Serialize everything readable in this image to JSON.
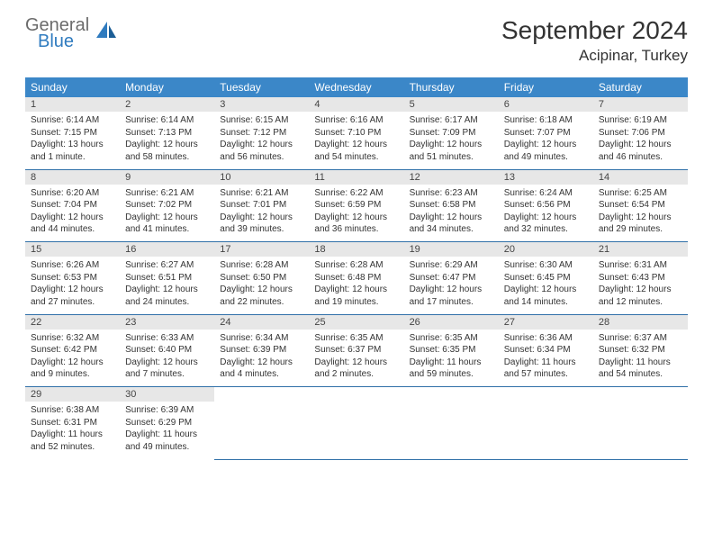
{
  "logo": {
    "general": "General",
    "blue": "Blue"
  },
  "title": "September 2024",
  "location": "Acipinar, Turkey",
  "colors": {
    "header_bg": "#3b87c8",
    "header_text": "#ffffff",
    "daynum_bg": "#e7e7e7",
    "row_border": "#2f6fa8",
    "logo_gray": "#6b6b6b",
    "logo_blue": "#2f7bbf"
  },
  "weekdays": [
    "Sunday",
    "Monday",
    "Tuesday",
    "Wednesday",
    "Thursday",
    "Friday",
    "Saturday"
  ],
  "weeks": [
    {
      "nums": [
        "1",
        "2",
        "3",
        "4",
        "5",
        "6",
        "7"
      ],
      "cells": [
        {
          "sunrise": "Sunrise: 6:14 AM",
          "sunset": "Sunset: 7:15 PM",
          "daylight": "Daylight: 13 hours and 1 minute."
        },
        {
          "sunrise": "Sunrise: 6:14 AM",
          "sunset": "Sunset: 7:13 PM",
          "daylight": "Daylight: 12 hours and 58 minutes."
        },
        {
          "sunrise": "Sunrise: 6:15 AM",
          "sunset": "Sunset: 7:12 PM",
          "daylight": "Daylight: 12 hours and 56 minutes."
        },
        {
          "sunrise": "Sunrise: 6:16 AM",
          "sunset": "Sunset: 7:10 PM",
          "daylight": "Daylight: 12 hours and 54 minutes."
        },
        {
          "sunrise": "Sunrise: 6:17 AM",
          "sunset": "Sunset: 7:09 PM",
          "daylight": "Daylight: 12 hours and 51 minutes."
        },
        {
          "sunrise": "Sunrise: 6:18 AM",
          "sunset": "Sunset: 7:07 PM",
          "daylight": "Daylight: 12 hours and 49 minutes."
        },
        {
          "sunrise": "Sunrise: 6:19 AM",
          "sunset": "Sunset: 7:06 PM",
          "daylight": "Daylight: 12 hours and 46 minutes."
        }
      ]
    },
    {
      "nums": [
        "8",
        "9",
        "10",
        "11",
        "12",
        "13",
        "14"
      ],
      "cells": [
        {
          "sunrise": "Sunrise: 6:20 AM",
          "sunset": "Sunset: 7:04 PM",
          "daylight": "Daylight: 12 hours and 44 minutes."
        },
        {
          "sunrise": "Sunrise: 6:21 AM",
          "sunset": "Sunset: 7:02 PM",
          "daylight": "Daylight: 12 hours and 41 minutes."
        },
        {
          "sunrise": "Sunrise: 6:21 AM",
          "sunset": "Sunset: 7:01 PM",
          "daylight": "Daylight: 12 hours and 39 minutes."
        },
        {
          "sunrise": "Sunrise: 6:22 AM",
          "sunset": "Sunset: 6:59 PM",
          "daylight": "Daylight: 12 hours and 36 minutes."
        },
        {
          "sunrise": "Sunrise: 6:23 AM",
          "sunset": "Sunset: 6:58 PM",
          "daylight": "Daylight: 12 hours and 34 minutes."
        },
        {
          "sunrise": "Sunrise: 6:24 AM",
          "sunset": "Sunset: 6:56 PM",
          "daylight": "Daylight: 12 hours and 32 minutes."
        },
        {
          "sunrise": "Sunrise: 6:25 AM",
          "sunset": "Sunset: 6:54 PM",
          "daylight": "Daylight: 12 hours and 29 minutes."
        }
      ]
    },
    {
      "nums": [
        "15",
        "16",
        "17",
        "18",
        "19",
        "20",
        "21"
      ],
      "cells": [
        {
          "sunrise": "Sunrise: 6:26 AM",
          "sunset": "Sunset: 6:53 PM",
          "daylight": "Daylight: 12 hours and 27 minutes."
        },
        {
          "sunrise": "Sunrise: 6:27 AM",
          "sunset": "Sunset: 6:51 PM",
          "daylight": "Daylight: 12 hours and 24 minutes."
        },
        {
          "sunrise": "Sunrise: 6:28 AM",
          "sunset": "Sunset: 6:50 PM",
          "daylight": "Daylight: 12 hours and 22 minutes."
        },
        {
          "sunrise": "Sunrise: 6:28 AM",
          "sunset": "Sunset: 6:48 PM",
          "daylight": "Daylight: 12 hours and 19 minutes."
        },
        {
          "sunrise": "Sunrise: 6:29 AM",
          "sunset": "Sunset: 6:47 PM",
          "daylight": "Daylight: 12 hours and 17 minutes."
        },
        {
          "sunrise": "Sunrise: 6:30 AM",
          "sunset": "Sunset: 6:45 PM",
          "daylight": "Daylight: 12 hours and 14 minutes."
        },
        {
          "sunrise": "Sunrise: 6:31 AM",
          "sunset": "Sunset: 6:43 PM",
          "daylight": "Daylight: 12 hours and 12 minutes."
        }
      ]
    },
    {
      "nums": [
        "22",
        "23",
        "24",
        "25",
        "26",
        "27",
        "28"
      ],
      "cells": [
        {
          "sunrise": "Sunrise: 6:32 AM",
          "sunset": "Sunset: 6:42 PM",
          "daylight": "Daylight: 12 hours and 9 minutes."
        },
        {
          "sunrise": "Sunrise: 6:33 AM",
          "sunset": "Sunset: 6:40 PM",
          "daylight": "Daylight: 12 hours and 7 minutes."
        },
        {
          "sunrise": "Sunrise: 6:34 AM",
          "sunset": "Sunset: 6:39 PM",
          "daylight": "Daylight: 12 hours and 4 minutes."
        },
        {
          "sunrise": "Sunrise: 6:35 AM",
          "sunset": "Sunset: 6:37 PM",
          "daylight": "Daylight: 12 hours and 2 minutes."
        },
        {
          "sunrise": "Sunrise: 6:35 AM",
          "sunset": "Sunset: 6:35 PM",
          "daylight": "Daylight: 11 hours and 59 minutes."
        },
        {
          "sunrise": "Sunrise: 6:36 AM",
          "sunset": "Sunset: 6:34 PM",
          "daylight": "Daylight: 11 hours and 57 minutes."
        },
        {
          "sunrise": "Sunrise: 6:37 AM",
          "sunset": "Sunset: 6:32 PM",
          "daylight": "Daylight: 11 hours and 54 minutes."
        }
      ]
    },
    {
      "nums": [
        "29",
        "30",
        "",
        "",
        "",
        "",
        ""
      ],
      "cells": [
        {
          "sunrise": "Sunrise: 6:38 AM",
          "sunset": "Sunset: 6:31 PM",
          "daylight": "Daylight: 11 hours and 52 minutes."
        },
        {
          "sunrise": "Sunrise: 6:39 AM",
          "sunset": "Sunset: 6:29 PM",
          "daylight": "Daylight: 11 hours and 49 minutes."
        },
        null,
        null,
        null,
        null,
        null
      ]
    }
  ]
}
